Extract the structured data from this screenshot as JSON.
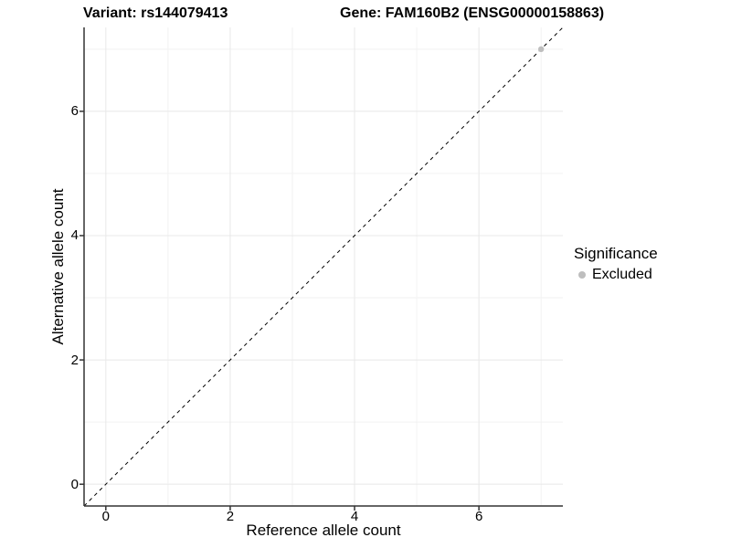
{
  "chart_data": {
    "type": "scatter",
    "title_variant": "Variant: rs144079413",
    "title_gene": "Gene: FAM160B2 (ENSG00000158863)",
    "xlabel": "Reference allele count",
    "ylabel": "Alternative allele count",
    "xlim": [
      -0.35,
      7.35
    ],
    "ylim": [
      -0.35,
      7.35
    ],
    "x_ticks": [
      0,
      2,
      4,
      6
    ],
    "y_ticks": [
      0,
      2,
      4,
      6
    ],
    "x_minor_ticks": [
      1,
      3,
      5,
      7
    ],
    "y_minor_ticks": [
      1,
      3,
      5,
      7
    ],
    "grid": "major+minor",
    "identity_line": {
      "style": "dashed",
      "color": "#000000",
      "from": [
        -0.35,
        -0.35
      ],
      "to": [
        7.35,
        7.35
      ]
    },
    "series": [
      {
        "name": "Excluded",
        "color": "#bebebe",
        "points": [
          {
            "x": 7,
            "y": 7
          }
        ]
      }
    ],
    "legend": {
      "position": "right",
      "title": "Significance",
      "entries": [
        {
          "label": "Excluded",
          "color": "#bebebe",
          "marker": "dot"
        }
      ]
    },
    "style": {
      "background": "#ffffff",
      "axis_color": "#333333",
      "tick_color": "#333333",
      "grid_major_color": "#e8e8e8",
      "grid_minor_color": "#f2f2f2",
      "point_color": "#bebebe"
    }
  }
}
